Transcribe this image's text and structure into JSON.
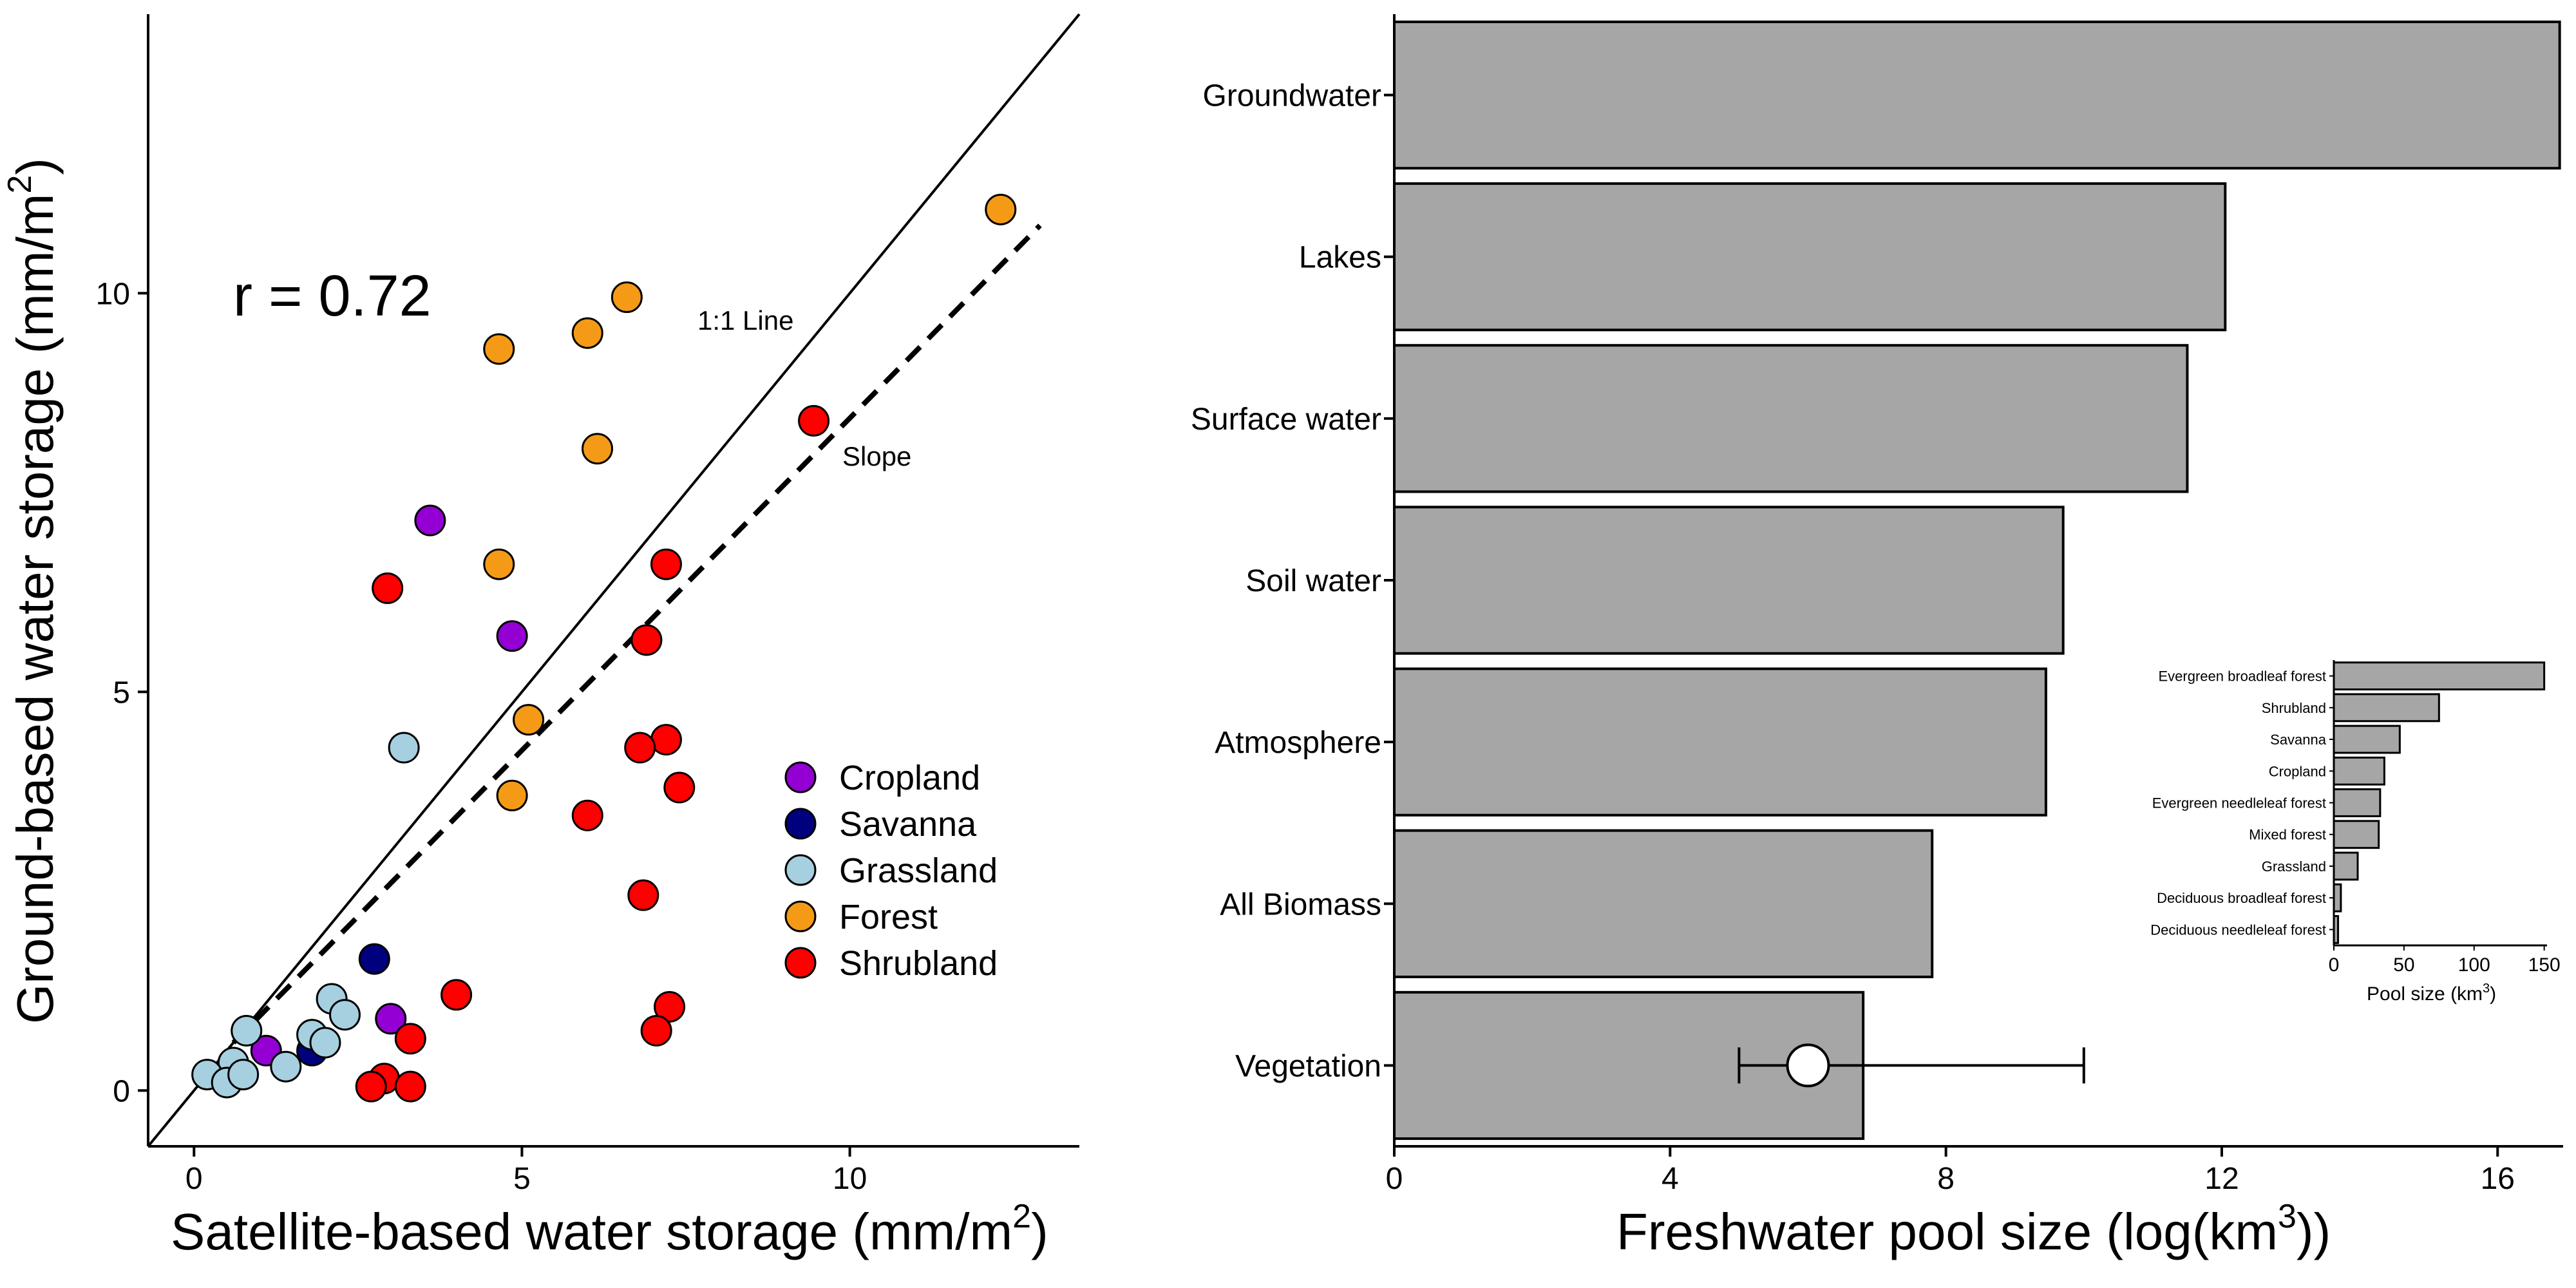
{
  "chart_data": [
    {
      "type": "scatter",
      "title": "",
      "xlabel": "Satellite-based water storage (mm/m",
      "xlabel_sup": "2",
      "xlabel_end": ")",
      "ylabel": "Ground-based water storage (mm/m",
      "ylabel_sup": "2",
      "ylabel_end": ")",
      "xlim": [
        -0.7,
        13.5
      ],
      "ylim": [
        -0.7,
        13.5
      ],
      "xticks": [
        0,
        5,
        10
      ],
      "yticks": [
        0,
        5,
        10
      ],
      "xtick_labels": [
        "0",
        "5",
        "10"
      ],
      "ytick_labels": [
        "0",
        "5",
        "10"
      ],
      "annotation_r": "r = 0.72",
      "annotation_line": "1:1 Line",
      "annotation_slope": "Slope",
      "slope_line": {
        "x0": 0.6,
        "y0": 0.6,
        "x1": 12.9,
        "y1": 10.85
      },
      "legend_position": "bottom-right",
      "series": [
        {
          "name": "Cropland",
          "color": "#9400d3",
          "points": [
            [
              3.6,
              7.15
            ],
            [
              4.85,
              5.7
            ],
            [
              1.1,
              0.5
            ],
            [
              3.0,
              0.9
            ]
          ]
        },
        {
          "name": "Savanna",
          "color": "#00007f",
          "points": [
            [
              2.75,
              1.65
            ],
            [
              1.8,
              0.5
            ]
          ]
        },
        {
          "name": "Grassland",
          "color": "#a6d0e0",
          "points": [
            [
              3.2,
              4.3
            ],
            [
              0.8,
              0.75
            ],
            [
              0.6,
              0.35
            ],
            [
              0.2,
              0.2
            ],
            [
              0.5,
              0.1
            ],
            [
              0.75,
              0.2
            ],
            [
              1.4,
              0.3
            ],
            [
              1.8,
              0.7
            ],
            [
              2.0,
              0.6
            ],
            [
              2.1,
              1.15
            ],
            [
              2.3,
              0.95
            ]
          ]
        },
        {
          "name": "Forest",
          "color": "#f59a17",
          "points": [
            [
              12.3,
              11.05
            ],
            [
              6.6,
              9.95
            ],
            [
              6.0,
              9.5
            ],
            [
              4.65,
              9.3
            ],
            [
              6.15,
              8.05
            ],
            [
              4.65,
              6.6
            ],
            [
              5.1,
              4.65
            ],
            [
              4.85,
              3.7
            ]
          ]
        },
        {
          "name": "Shrubland",
          "color": "#fe0000",
          "points": [
            [
              9.45,
              8.4
            ],
            [
              2.95,
              6.3
            ],
            [
              7.2,
              6.6
            ],
            [
              6.9,
              5.65
            ],
            [
              7.2,
              4.4
            ],
            [
              6.8,
              4.3
            ],
            [
              7.4,
              3.8
            ],
            [
              6.0,
              3.45
            ],
            [
              6.85,
              2.45
            ],
            [
              4.0,
              1.2
            ],
            [
              3.3,
              0.65
            ],
            [
              7.25,
              1.05
            ],
            [
              7.05,
              0.75
            ],
            [
              2.9,
              0.15
            ],
            [
              2.7,
              0.05
            ],
            [
              3.3,
              0.05
            ]
          ]
        }
      ]
    },
    {
      "type": "bar",
      "orientation": "horizontal",
      "xlabel": "Freshwater pool size (log(km",
      "xlabel_sup": "3",
      "xlabel_end": "))",
      "categories": [
        "Groundwater",
        "Lakes",
        "Surface water",
        "Soil water",
        "Atmosphere",
        "All Biomass",
        "Vegetation"
      ],
      "values": [
        16.9,
        12.05,
        11.5,
        9.7,
        9.45,
        7.8,
        6.8
      ],
      "bar_color": "#a6a6a6",
      "xlim": [
        0,
        16.95
      ],
      "xticks": [
        0,
        4,
        8,
        12,
        16
      ],
      "xtick_labels": [
        "0",
        "4",
        "8",
        "12",
        "16"
      ],
      "vegetation_point": {
        "value": 6.0,
        "error_low": 5.0,
        "error_high": 10.0
      }
    },
    {
      "type": "bar",
      "orientation": "horizontal",
      "role": "inset",
      "xlabel": "Pool size (km",
      "xlabel_sup": "3",
      "xlabel_end": ")",
      "categories": [
        "Evergreen broadleaf forest",
        "Shrubland",
        "Savanna",
        "Cropland",
        "Evergreen needleleaf forest",
        "Mixed forest",
        "Grassland",
        "Deciduous broadleaf forest",
        "Deciduous needleleaf forest"
      ],
      "values": [
        150,
        75,
        47,
        36,
        33,
        32,
        17,
        5,
        3
      ],
      "bar_color": "#a6a6a6",
      "xlim": [
        0,
        152
      ],
      "xticks": [
        0,
        50,
        100,
        150
      ],
      "xtick_labels": [
        "0",
        "50",
        "100",
        "150"
      ]
    }
  ]
}
